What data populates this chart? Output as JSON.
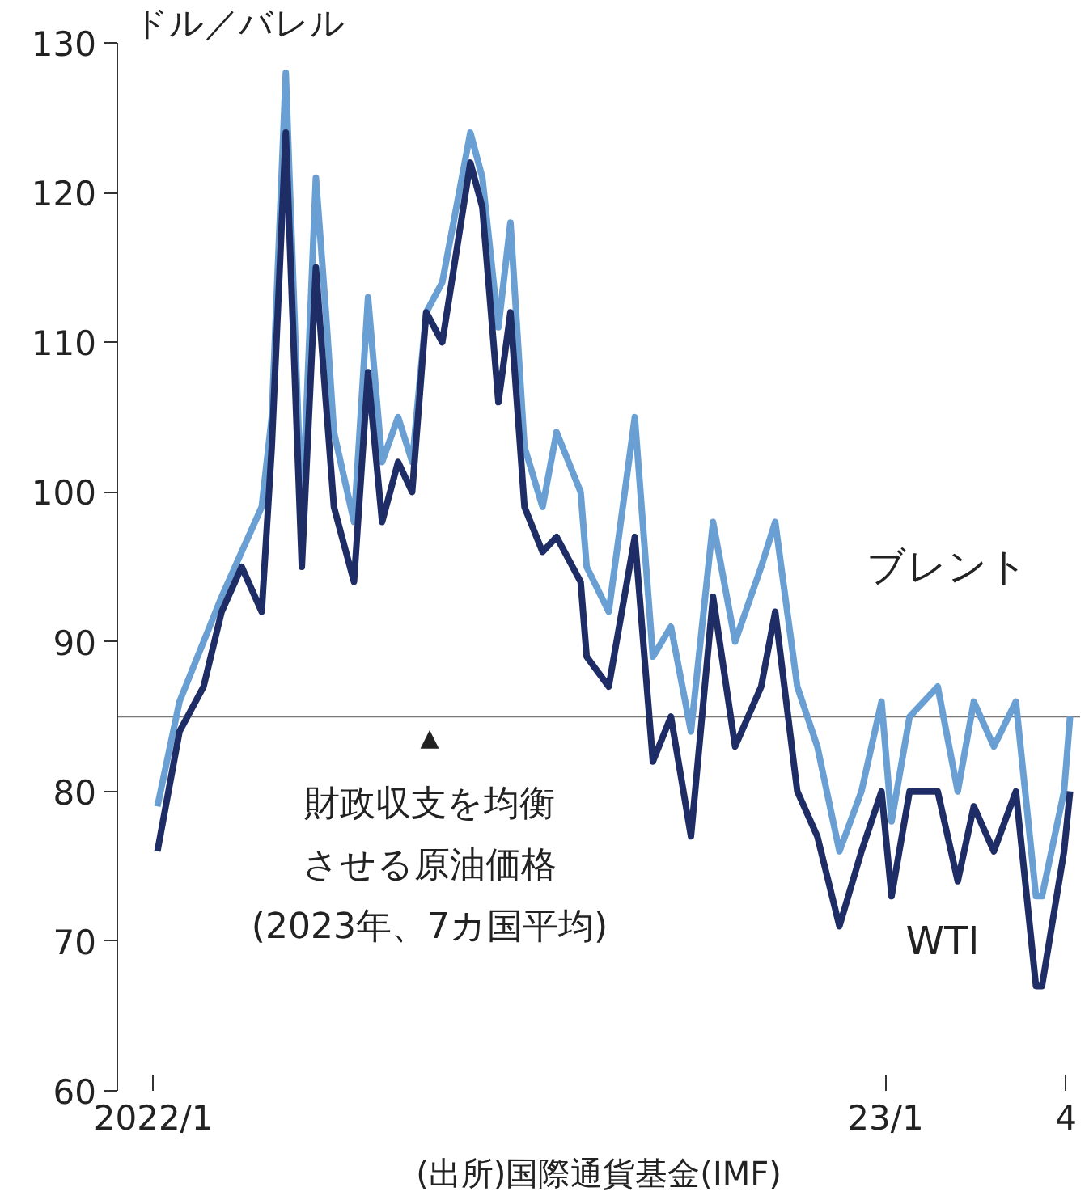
{
  "chart_data": {
    "type": "line",
    "ylabel": "ドル／バレル",
    "x": [
      "2022-01-03",
      "2022-01-14",
      "2022-01-26",
      "2022-02-04",
      "2022-02-14",
      "2022-02-24",
      "2022-03-01",
      "2022-03-08",
      "2022-03-16",
      "2022-03-23",
      "2022-03-28",
      "2022-04-01",
      "2022-04-11",
      "2022-04-18",
      "2022-04-25",
      "2022-05-03",
      "2022-05-10",
      "2022-05-17",
      "2022-05-25",
      "2022-06-08",
      "2022-06-14",
      "2022-06-22",
      "2022-06-28",
      "2022-07-05",
      "2022-07-14",
      "2022-07-21",
      "2022-08-02",
      "2022-08-05",
      "2022-08-16",
      "2022-08-29",
      "2022-09-07",
      "2022-09-16",
      "2022-09-26",
      "2022-10-07",
      "2022-10-18",
      "2022-10-31",
      "2022-11-07",
      "2022-11-18",
      "2022-11-28",
      "2022-12-09",
      "2022-12-20",
      "2022-12-30",
      "2023-01-04",
      "2023-01-13",
      "2023-01-27",
      "2023-02-06",
      "2023-02-14",
      "2023-02-24",
      "2023-03-07",
      "2023-03-17",
      "2023-03-20",
      "2023-03-31",
      "2023-04-03"
    ],
    "series": [
      {
        "name": "ブレント",
        "color": "#6a9fd4",
        "values": [
          79,
          86,
          90,
          93,
          96,
          99,
          105,
          128,
          98,
          121,
          112,
          104,
          98,
          113,
          102,
          105,
          102,
          112,
          114,
          124,
          121,
          111,
          118,
          103,
          99,
          104,
          100,
          95,
          92,
          105,
          89,
          91,
          84,
          98,
          90,
          95,
          98,
          87,
          83,
          76,
          80,
          86,
          78,
          85,
          87,
          80,
          86,
          83,
          86,
          73,
          73,
          80,
          85
        ]
      },
      {
        "name": "WTI",
        "color": "#1f2d66",
        "values": [
          76,
          84,
          87,
          92,
          95,
          92,
          103,
          124,
          95,
          115,
          106,
          99,
          94,
          108,
          98,
          102,
          100,
          112,
          110,
          122,
          119,
          106,
          112,
          99,
          96,
          97,
          94,
          89,
          87,
          97,
          82,
          85,
          77,
          93,
          83,
          87,
          92,
          80,
          77,
          71,
          76,
          80,
          73,
          80,
          80,
          74,
          79,
          76,
          80,
          67,
          67,
          76,
          80
        ]
      }
    ],
    "xlim": [
      "2021-12-14",
      "2023-04-08"
    ],
    "xticks": [
      {
        "value": "2022-01-01",
        "label": "2022/1"
      },
      {
        "value": "2023-01-01",
        "label": "23/1"
      },
      {
        "value": "2023-04-01",
        "label": "4"
      }
    ],
    "ylim": [
      60,
      130
    ],
    "yticks": [
      60,
      70,
      80,
      90,
      100,
      110,
      120,
      130
    ],
    "ref_lines": [
      {
        "axis": "y",
        "value": 85,
        "label": "▲財政収支を均衡させる原油価格(2023年、7カ国平均)",
        "color": "#777777"
      }
    ],
    "annotations": [
      "(出所)国際通貨基金(IMF)"
    ],
    "grid": false,
    "legend": false,
    "line_style": "solid",
    "marker": "none"
  }
}
